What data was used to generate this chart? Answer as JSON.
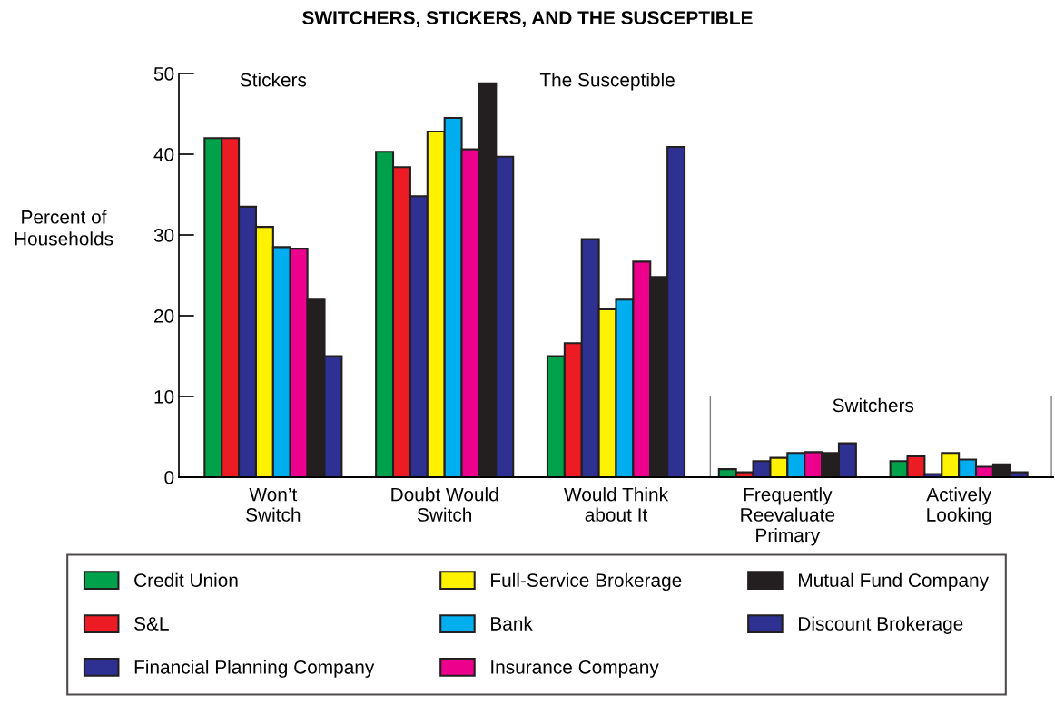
{
  "chart_data": {
    "type": "bar",
    "title": "SWITCHERS, STICKERS, AND THE SUSCEPTIBLE",
    "ylabel": "Percent of\nHouseholds",
    "categories": [
      "Won’t\nSwitch",
      "Doubt Would\nSwitch",
      "Would Think\nabout It",
      "Frequently\nReevaluate\nPrimary",
      "Actively\nLooking"
    ],
    "series": [
      {
        "name": "Credit Union",
        "color": "#00a14b",
        "values": [
          42,
          40.3,
          15,
          1.0,
          2.0
        ]
      },
      {
        "name": "S&L",
        "color": "#ed1c24",
        "values": [
          42,
          38.4,
          16.6,
          0.6,
          2.6
        ]
      },
      {
        "name": "Financial Planning Company",
        "color": "#2e3192",
        "values": [
          33.5,
          34.8,
          29.5,
          2.0,
          0.4
        ]
      },
      {
        "name": "Full-Service Brokerage",
        "color": "#fff200",
        "values": [
          31,
          42.8,
          20.8,
          2.4,
          3.0
        ]
      },
      {
        "name": "Bank",
        "color": "#00aeef",
        "values": [
          28.5,
          44.5,
          22,
          3.0,
          2.2
        ]
      },
      {
        "name": "Insurance Company",
        "color": "#ec008c",
        "values": [
          28.3,
          40.6,
          26.7,
          3.1,
          1.3
        ]
      },
      {
        "name": "Mutual Fund Company",
        "color": "#231f20",
        "values": [
          22,
          48.8,
          24.8,
          3.0,
          1.6
        ]
      },
      {
        "name": "Discount Brokerage",
        "color": "#2e3192",
        "values": [
          15,
          39.7,
          40.9,
          4.2,
          0.6
        ]
      }
    ],
    "ylim": [
      0,
      50
    ],
    "yticks": [
      0,
      10,
      20,
      30,
      40,
      50
    ],
    "grid": false,
    "legend": "bottom",
    "annotations": [
      "Stickers",
      "The Susceptible",
      "Switchers"
    ]
  }
}
